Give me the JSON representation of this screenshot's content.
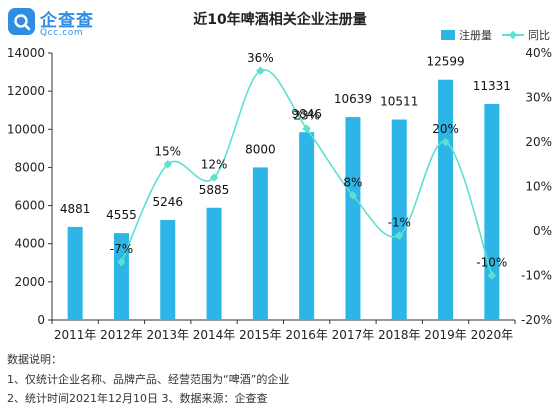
{
  "logo": {
    "name": "企查查",
    "sub": "Qcc.com"
  },
  "chart_data": {
    "type": "bar",
    "title": "近10年啤酒相关企业注册量",
    "categories": [
      "2011年",
      "2012年",
      "2013年",
      "2014年",
      "2015年",
      "2016年",
      "2017年",
      "2018年",
      "2019年",
      "2020年"
    ],
    "series": [
      {
        "name": "注册量",
        "axis": "left",
        "values": [
          4881,
          4555,
          5246,
          5885,
          8000,
          9846,
          10639,
          10511,
          12599,
          11331
        ],
        "labels": [
          "4881",
          "4555",
          "5246",
          "5885",
          "8000",
          "9846",
          "10639",
          "10511",
          "12599",
          "11331"
        ]
      },
      {
        "name": "同比",
        "axis": "right",
        "line_type": "smooth",
        "values": [
          null,
          -7,
          15,
          12,
          36,
          23,
          8,
          -1,
          20,
          -10
        ],
        "labels": [
          "",
          "-7%",
          "15%",
          "12%",
          "36%",
          "23%",
          "8%",
          "-1%",
          "20%",
          "-10%"
        ]
      }
    ],
    "y_left": {
      "ylim": [
        0,
        14000
      ],
      "ticks": [
        "0",
        "2000",
        "4000",
        "6000",
        "8000",
        "10000",
        "12000",
        "14000"
      ]
    },
    "y_right": {
      "ylim": [
        -20,
        40
      ],
      "ticks": [
        "-20%",
        "-10%",
        "0%",
        "10%",
        "20%",
        "30%",
        "40%"
      ]
    },
    "legend_position": "top-right",
    "colors": {
      "bar": "#2cb5e6",
      "line": "#5ee0d0"
    }
  },
  "notes": {
    "heading": "数据说明：",
    "line1": "1、仅统计企业名称、品牌产品、经营范围为“啤酒”的企业",
    "line2": "2、统计时间2021年12月10日  3、数据来源：企查查"
  }
}
